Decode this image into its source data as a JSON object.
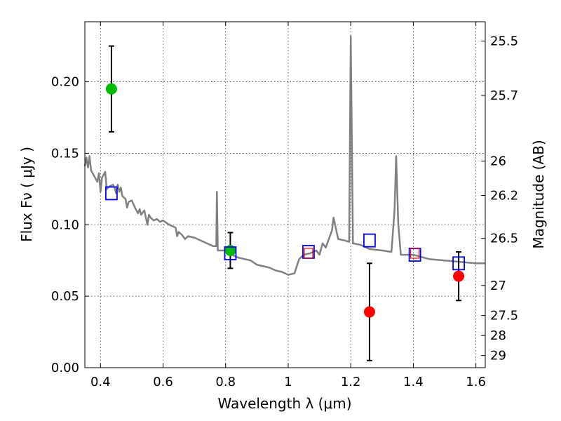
{
  "chart_data": {
    "type": "scatter",
    "xlabel": "Wavelength  λ (μm)",
    "ylabel": "Flux  Fν  ( μJy )",
    "ylabel_right": "Magnitude (AB)",
    "xlim": [
      0.35,
      1.63
    ],
    "ylim": [
      0.0,
      0.242
    ],
    "grid": true,
    "x_ticks": [
      0.4,
      0.6,
      0.8,
      1.0,
      1.2,
      1.4,
      1.6
    ],
    "x_tick_labels": [
      "0.4",
      "0.6",
      "0.8",
      "1",
      "1.2",
      "1.4",
      "1.6"
    ],
    "y_ticks": [
      0.0,
      0.05,
      0.1,
      0.15,
      0.2
    ],
    "y_tick_labels": [
      "0.00",
      "0.05",
      "0.10",
      "0.15",
      "0.20"
    ],
    "right_ticks": [
      {
        "flux": 0.2285,
        "label": "25.5"
      },
      {
        "flux": 0.1905,
        "label": "25.7"
      },
      {
        "flux": 0.1445,
        "label": "26"
      },
      {
        "flux": 0.1205,
        "label": "26.2"
      },
      {
        "flux": 0.0905,
        "label": "26.5"
      },
      {
        "flux": 0.0575,
        "label": "27"
      },
      {
        "flux": 0.0365,
        "label": "27.5"
      },
      {
        "flux": 0.0225,
        "label": "28"
      },
      {
        "flux": 0.0085,
        "label": "29"
      }
    ],
    "model_spectrum": {
      "color": "#808080",
      "points": [
        [
          0.35,
          0.141
        ],
        [
          0.355,
          0.147
        ],
        [
          0.36,
          0.14
        ],
        [
          0.365,
          0.148
        ],
        [
          0.37,
          0.138
        ],
        [
          0.38,
          0.134
        ],
        [
          0.39,
          0.13
        ],
        [
          0.395,
          0.136
        ],
        [
          0.4,
          0.123
        ],
        [
          0.405,
          0.133
        ],
        [
          0.41,
          0.135
        ],
        [
          0.415,
          0.137
        ],
        [
          0.42,
          0.125
        ],
        [
          0.43,
          0.127
        ],
        [
          0.44,
          0.128
        ],
        [
          0.445,
          0.126
        ],
        [
          0.45,
          0.122
        ],
        [
          0.455,
          0.128
        ],
        [
          0.46,
          0.123
        ],
        [
          0.465,
          0.126
        ],
        [
          0.47,
          0.12
        ],
        [
          0.48,
          0.118
        ],
        [
          0.485,
          0.112
        ],
        [
          0.49,
          0.116
        ],
        [
          0.5,
          0.117
        ],
        [
          0.51,
          0.112
        ],
        [
          0.52,
          0.108
        ],
        [
          0.525,
          0.111
        ],
        [
          0.53,
          0.107
        ],
        [
          0.54,
          0.11
        ],
        [
          0.55,
          0.1
        ],
        [
          0.555,
          0.107
        ],
        [
          0.56,
          0.105
        ],
        [
          0.57,
          0.103
        ],
        [
          0.58,
          0.104
        ],
        [
          0.59,
          0.102
        ],
        [
          0.6,
          0.103
        ],
        [
          0.62,
          0.1
        ],
        [
          0.64,
          0.098
        ],
        [
          0.645,
          0.092
        ],
        [
          0.65,
          0.095
        ],
        [
          0.66,
          0.093
        ],
        [
          0.67,
          0.09
        ],
        [
          0.68,
          0.092
        ],
        [
          0.7,
          0.091
        ],
        [
          0.72,
          0.089
        ],
        [
          0.74,
          0.087
        ],
        [
          0.76,
          0.085
        ],
        [
          0.77,
          0.085
        ],
        [
          0.772,
          0.123
        ],
        [
          0.775,
          0.082
        ],
        [
          0.8,
          0.082
        ],
        [
          0.82,
          0.079
        ],
        [
          0.84,
          0.077
        ],
        [
          0.86,
          0.076
        ],
        [
          0.88,
          0.075
        ],
        [
          0.9,
          0.072
        ],
        [
          0.92,
          0.071
        ],
        [
          0.94,
          0.07
        ],
        [
          0.96,
          0.068
        ],
        [
          0.98,
          0.067
        ],
        [
          1.0,
          0.065
        ],
        [
          1.02,
          0.066
        ],
        [
          1.035,
          0.076
        ],
        [
          1.05,
          0.079
        ],
        [
          1.07,
          0.08
        ],
        [
          1.09,
          0.082
        ],
        [
          1.1,
          0.079
        ],
        [
          1.11,
          0.087
        ],
        [
          1.12,
          0.084
        ],
        [
          1.135,
          0.093
        ],
        [
          1.14,
          0.096
        ],
        [
          1.145,
          0.105
        ],
        [
          1.16,
          0.09
        ],
        [
          1.18,
          0.089
        ],
        [
          1.195,
          0.088
        ],
        [
          1.2,
          0.232
        ],
        [
          1.207,
          0.087
        ],
        [
          1.23,
          0.086
        ],
        [
          1.26,
          0.083
        ],
        [
          1.3,
          0.082
        ],
        [
          1.33,
          0.081
        ],
        [
          1.34,
          0.11
        ],
        [
          1.345,
          0.148
        ],
        [
          1.352,
          0.1
        ],
        [
          1.36,
          0.079
        ],
        [
          1.4,
          0.079
        ],
        [
          1.45,
          0.076
        ],
        [
          1.5,
          0.075
        ],
        [
          1.55,
          0.074
        ],
        [
          1.6,
          0.073
        ],
        [
          1.63,
          0.073
        ]
      ]
    },
    "series": [
      {
        "color": "#00bb00",
        "marker": "circle",
        "points": [
          {
            "x": 0.435,
            "y": 0.195,
            "yerr": 0.03
          },
          {
            "x": 0.815,
            "y": 0.082,
            "yerr": 0.0125
          }
        ]
      },
      {
        "color": "#ff0000",
        "marker": "circle",
        "points": [
          {
            "x": 1.26,
            "y": 0.039,
            "yerr": 0.034
          },
          {
            "x": 1.545,
            "y": 0.064,
            "yerr": 0.017
          }
        ]
      },
      {
        "color": "#0000ff",
        "marker": "open-square",
        "points": [
          {
            "x": 0.435,
            "y": 0.122
          },
          {
            "x": 0.815,
            "y": 0.08
          },
          {
            "x": 1.065,
            "y": 0.081
          },
          {
            "x": 1.26,
            "y": 0.089
          },
          {
            "x": 1.405,
            "y": 0.079
          },
          {
            "x": 1.545,
            "y": 0.073
          }
        ]
      },
      {
        "color": "#ff0000",
        "marker": "open-square-small",
        "points": [
          {
            "x": 1.065,
            "y": 0.08
          },
          {
            "x": 1.405,
            "y": 0.08
          }
        ]
      }
    ]
  }
}
